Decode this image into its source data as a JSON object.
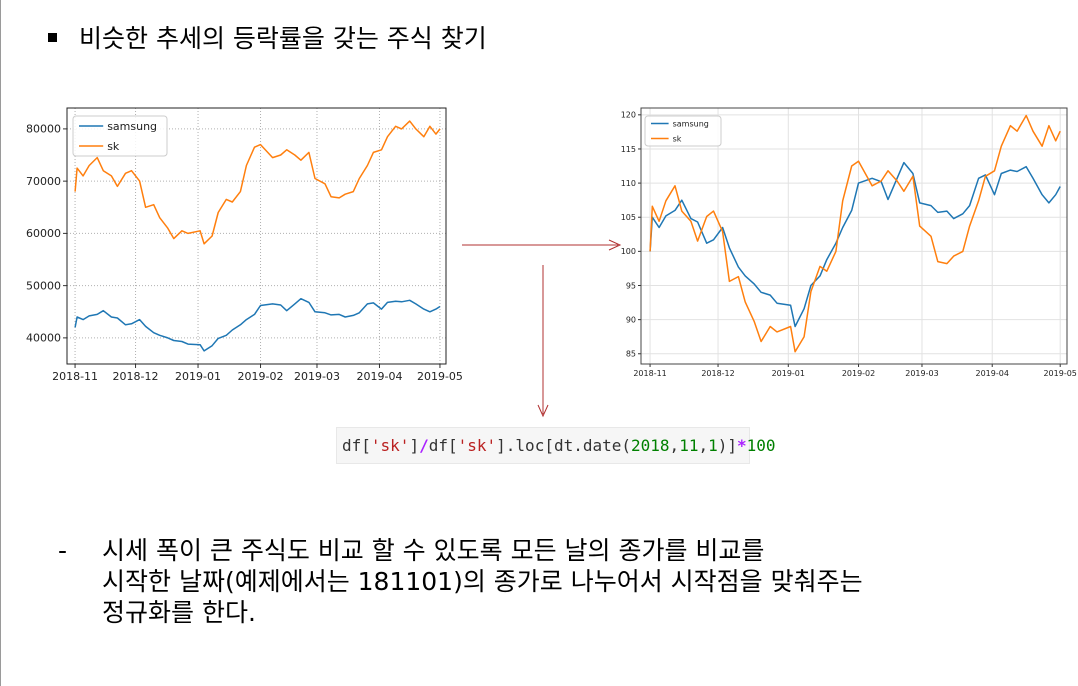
{
  "heading": "비슷한 추세의 등락률을 갖는 주식 찾기",
  "code": {
    "p1": "df[",
    "s1": "'sk'",
    "p2": "]",
    "op1": "/",
    "p3": "df[",
    "s2": "'sk'",
    "p4": "].loc[dt.date(",
    "n1": "2018",
    "c1": ",",
    "n2": "11",
    "c2": ",",
    "n3": "1",
    "p5": ")]",
    "op2": "*",
    "n4": "100"
  },
  "bullet_dash": "-",
  "body_lines": [
    "시세 폭이 큰 주식도 비교 할 수 있도록 모든 날의 종가를 비교를",
    "시작한 날짜(예제에서는 181101)의 종가로 나누어서 시작점을 맞춰주는",
    "정규화를 한다."
  ],
  "colors": {
    "samsung": "#1f77b4",
    "sk": "#ff7f0e",
    "arrow": "#b03030"
  },
  "chart_data": [
    {
      "type": "line",
      "x_ticks": [
        "2018-11",
        "2018-12",
        "2019-01",
        "2019-02",
        "2019-03",
        "2019-04",
        "2019-05"
      ],
      "ylim": [
        35000,
        84000
      ],
      "y_ticks": [
        40000,
        50000,
        60000,
        70000,
        80000
      ],
      "grid": "on (dotted)",
      "legend": "top-left",
      "series": [
        {
          "name": "samsung",
          "points": [
            [
              "2018-11-01",
              42000
            ],
            [
              "2018-11-02",
              44000
            ],
            [
              "2018-11-05",
              43500
            ],
            [
              "2018-11-08",
              44200
            ],
            [
              "2018-11-12",
              44500
            ],
            [
              "2018-11-15",
              45200
            ],
            [
              "2018-11-19",
              44000
            ],
            [
              "2018-11-22",
              43800
            ],
            [
              "2018-11-26",
              42500
            ],
            [
              "2018-11-29",
              42700
            ],
            [
              "2018-12-03",
              43500
            ],
            [
              "2018-12-06",
              42200
            ],
            [
              "2018-12-10",
              41000
            ],
            [
              "2018-12-13",
              40500
            ],
            [
              "2018-12-17",
              40000
            ],
            [
              "2018-12-20",
              39500
            ],
            [
              "2018-12-24",
              39300
            ],
            [
              "2018-12-27",
              38800
            ],
            [
              "2019-01-02",
              38700
            ],
            [
              "2019-01-04",
              37500
            ],
            [
              "2019-01-08",
              38500
            ],
            [
              "2019-01-11",
              39900
            ],
            [
              "2019-01-15",
              40500
            ],
            [
              "2019-01-18",
              41500
            ],
            [
              "2019-01-22",
              42500
            ],
            [
              "2019-01-25",
              43500
            ],
            [
              "2019-01-29",
              44500
            ],
            [
              "2019-02-01",
              46200
            ],
            [
              "2019-02-07",
              46500
            ],
            [
              "2019-02-11",
              46300
            ],
            [
              "2019-02-14",
              45200
            ],
            [
              "2019-02-18",
              46500
            ],
            [
              "2019-02-21",
              47500
            ],
            [
              "2019-02-25",
              46800
            ],
            [
              "2019-02-28",
              45000
            ],
            [
              "2019-03-05",
              44800
            ],
            [
              "2019-03-08",
              44400
            ],
            [
              "2019-03-12",
              44500
            ],
            [
              "2019-03-15",
              44000
            ],
            [
              "2019-03-19",
              44300
            ],
            [
              "2019-03-22",
              44800
            ],
            [
              "2019-03-26",
              46500
            ],
            [
              "2019-03-29",
              46700
            ],
            [
              "2019-04-02",
              45500
            ],
            [
              "2019-04-05",
              46800
            ],
            [
              "2019-04-09",
              47000
            ],
            [
              "2019-04-12",
              46900
            ],
            [
              "2019-04-16",
              47200
            ],
            [
              "2019-04-19",
              46500
            ],
            [
              "2019-04-23",
              45500
            ],
            [
              "2019-04-26",
              45000
            ],
            [
              "2019-04-29",
              45500
            ],
            [
              "2019-05-01",
              46000
            ]
          ]
        },
        {
          "name": "sk",
          "points": [
            [
              "2018-11-01",
              68000
            ],
            [
              "2018-11-02",
              72500
            ],
            [
              "2018-11-05",
              71000
            ],
            [
              "2018-11-08",
              73000
            ],
            [
              "2018-11-12",
              74500
            ],
            [
              "2018-11-15",
              72000
            ],
            [
              "2018-11-19",
              71000
            ],
            [
              "2018-11-22",
              69000
            ],
            [
              "2018-11-26",
              71500
            ],
            [
              "2018-11-29",
              72000
            ],
            [
              "2018-12-03",
              70000
            ],
            [
              "2018-12-06",
              65000
            ],
            [
              "2018-12-10",
              65500
            ],
            [
              "2018-12-13",
              63000
            ],
            [
              "2018-12-17",
              61000
            ],
            [
              "2018-12-20",
              59000
            ],
            [
              "2018-12-24",
              60500
            ],
            [
              "2018-12-27",
              60000
            ],
            [
              "2019-01-02",
              60500
            ],
            [
              "2019-01-04",
              58000
            ],
            [
              "2019-01-08",
              59500
            ],
            [
              "2019-01-11",
              64000
            ],
            [
              "2019-01-15",
              66500
            ],
            [
              "2019-01-18",
              66000
            ],
            [
              "2019-01-22",
              68000
            ],
            [
              "2019-01-25",
              73000
            ],
            [
              "2019-01-29",
              76500
            ],
            [
              "2019-02-01",
              77000
            ],
            [
              "2019-02-07",
              74500
            ],
            [
              "2019-02-11",
              75000
            ],
            [
              "2019-02-14",
              76000
            ],
            [
              "2019-02-18",
              75000
            ],
            [
              "2019-02-21",
              74000
            ],
            [
              "2019-02-25",
              75500
            ],
            [
              "2019-02-28",
              70500
            ],
            [
              "2019-03-05",
              69500
            ],
            [
              "2019-03-08",
              67000
            ],
            [
              "2019-03-12",
              66800
            ],
            [
              "2019-03-15",
              67500
            ],
            [
              "2019-03-19",
              68000
            ],
            [
              "2019-03-22",
              70500
            ],
            [
              "2019-03-26",
              73000
            ],
            [
              "2019-03-29",
              75500
            ],
            [
              "2019-04-02",
              76000
            ],
            [
              "2019-04-05",
              78500
            ],
            [
              "2019-04-09",
              80500
            ],
            [
              "2019-04-12",
              80000
            ],
            [
              "2019-04-16",
              81500
            ],
            [
              "2019-04-19",
              80000
            ],
            [
              "2019-04-23",
              78500
            ],
            [
              "2019-04-26",
              80500
            ],
            [
              "2019-04-29",
              79000
            ],
            [
              "2019-05-01",
              80000
            ]
          ]
        }
      ]
    },
    {
      "type": "line",
      "x_ticks": [
        "2018-11",
        "2018-12",
        "2019-01",
        "2019-02",
        "2019-03",
        "2019-04",
        "2019-05"
      ],
      "ylim": [
        83.5,
        121
      ],
      "y_ticks": [
        85,
        90,
        95,
        100,
        105,
        110,
        115,
        120
      ],
      "grid": "on",
      "legend": "top-left",
      "series": [
        {
          "name": "samsung",
          "points": [
            [
              "2018-11-01",
              100
            ],
            [
              "2018-11-02",
              105
            ],
            [
              "2018-11-05",
              103.5
            ],
            [
              "2018-11-08",
              105.2
            ],
            [
              "2018-11-12",
              106
            ],
            [
              "2018-11-15",
              107.5
            ],
            [
              "2018-11-19",
              104.8
            ],
            [
              "2018-11-22",
              104.3
            ],
            [
              "2018-11-26",
              101.2
            ],
            [
              "2018-11-29",
              101.7
            ],
            [
              "2018-12-03",
              103.5
            ],
            [
              "2018-12-06",
              100.5
            ],
            [
              "2018-12-10",
              97.7
            ],
            [
              "2018-12-13",
              96.4
            ],
            [
              "2018-12-17",
              95.2
            ],
            [
              "2018-12-20",
              94
            ],
            [
              "2018-12-24",
              93.6
            ],
            [
              "2018-12-27",
              92.4
            ],
            [
              "2019-01-02",
              92.1
            ],
            [
              "2019-01-04",
              89
            ],
            [
              "2019-01-08",
              91.6
            ],
            [
              "2019-01-11",
              95
            ],
            [
              "2019-01-15",
              96.4
            ],
            [
              "2019-01-18",
              98.8
            ],
            [
              "2019-01-22",
              101.2
            ],
            [
              "2019-01-25",
              103.5
            ],
            [
              "2019-01-29",
              106
            ],
            [
              "2019-02-01",
              110
            ],
            [
              "2019-02-07",
              110.7
            ],
            [
              "2019-02-11",
              110.2
            ],
            [
              "2019-02-14",
              107.6
            ],
            [
              "2019-02-18",
              110.7
            ],
            [
              "2019-02-21",
              113
            ],
            [
              "2019-02-25",
              111.4
            ],
            [
              "2019-02-28",
              107.1
            ],
            [
              "2019-03-05",
              106.7
            ],
            [
              "2019-03-08",
              105.7
            ],
            [
              "2019-03-12",
              105.9
            ],
            [
              "2019-03-15",
              104.8
            ],
            [
              "2019-03-19",
              105.5
            ],
            [
              "2019-03-22",
              106.7
            ],
            [
              "2019-03-26",
              110.7
            ],
            [
              "2019-03-29",
              111.2
            ],
            [
              "2019-04-02",
              108.3
            ],
            [
              "2019-04-05",
              111.4
            ],
            [
              "2019-04-09",
              111.9
            ],
            [
              "2019-04-12",
              111.7
            ],
            [
              "2019-04-16",
              112.4
            ],
            [
              "2019-04-19",
              110.7
            ],
            [
              "2019-04-23",
              108.3
            ],
            [
              "2019-04-26",
              107.1
            ],
            [
              "2019-04-29",
              108.3
            ],
            [
              "2019-05-01",
              109.5
            ]
          ]
        },
        {
          "name": "sk",
          "points": [
            [
              "2018-11-01",
              100
            ],
            [
              "2018-11-02",
              106.6
            ],
            [
              "2018-11-05",
              104.4
            ],
            [
              "2018-11-08",
              107.4
            ],
            [
              "2018-11-12",
              109.6
            ],
            [
              "2018-11-15",
              105.9
            ],
            [
              "2018-11-19",
              104.4
            ],
            [
              "2018-11-22",
              101.5
            ],
            [
              "2018-11-26",
              105.1
            ],
            [
              "2018-11-29",
              105.9
            ],
            [
              "2018-12-03",
              102.9
            ],
            [
              "2018-12-06",
              95.6
            ],
            [
              "2018-12-10",
              96.3
            ],
            [
              "2018-12-13",
              92.6
            ],
            [
              "2018-12-17",
              89.7
            ],
            [
              "2018-12-20",
              86.8
            ],
            [
              "2018-12-24",
              89
            ],
            [
              "2018-12-27",
              88.2
            ],
            [
              "2019-01-02",
              89
            ],
            [
              "2019-01-04",
              85.3
            ],
            [
              "2019-01-08",
              87.5
            ],
            [
              "2019-01-11",
              94.1
            ],
            [
              "2019-01-15",
              97.8
            ],
            [
              "2019-01-18",
              97.1
            ],
            [
              "2019-01-22",
              100
            ],
            [
              "2019-01-25",
              107.4
            ],
            [
              "2019-01-29",
              112.5
            ],
            [
              "2019-02-01",
              113.2
            ],
            [
              "2019-02-07",
              109.6
            ],
            [
              "2019-02-11",
              110.3
            ],
            [
              "2019-02-14",
              111.8
            ],
            [
              "2019-02-18",
              110.3
            ],
            [
              "2019-02-21",
              108.8
            ],
            [
              "2019-02-25",
              111
            ],
            [
              "2019-02-28",
              103.7
            ],
            [
              "2019-03-05",
              102.2
            ],
            [
              "2019-03-08",
              98.5
            ],
            [
              "2019-03-12",
              98.2
            ],
            [
              "2019-03-15",
              99.3
            ],
            [
              "2019-03-19",
              100
            ],
            [
              "2019-03-22",
              103.7
            ],
            [
              "2019-03-26",
              107.4
            ],
            [
              "2019-03-29",
              111
            ],
            [
              "2019-04-02",
              111.8
            ],
            [
              "2019-04-05",
              115.4
            ],
            [
              "2019-04-09",
              118.4
            ],
            [
              "2019-04-12",
              117.6
            ],
            [
              "2019-04-16",
              119.9
            ],
            [
              "2019-04-19",
              117.6
            ],
            [
              "2019-04-23",
              115.4
            ],
            [
              "2019-04-26",
              118.4
            ],
            [
              "2019-04-29",
              116.2
            ],
            [
              "2019-05-01",
              117.6
            ]
          ]
        }
      ]
    }
  ]
}
